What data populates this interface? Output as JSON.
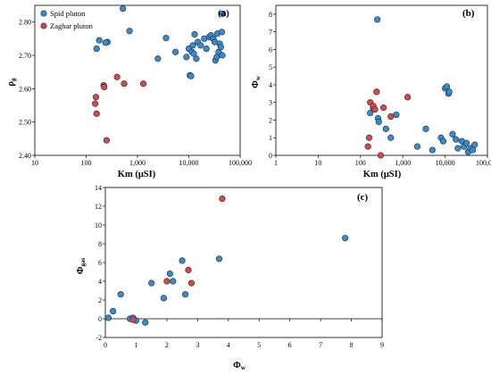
{
  "chart_data": [
    {
      "type": "scatter",
      "panel_label": "(a)",
      "xlabel": "Km (μSI)",
      "ylabel_main": "ρ",
      "ylabel_sub": "g",
      "xscale": "log",
      "xlim": [
        10,
        100000
      ],
      "ylim": [
        2.4,
        2.85
      ],
      "xticks": [
        10,
        100,
        1000,
        10000,
        100000
      ],
      "xtick_labels": [
        "10",
        "100",
        "1,000",
        "10,000",
        "100,000"
      ],
      "yticks": [
        2.4,
        2.5,
        2.6,
        2.7,
        2.8
      ],
      "ytick_labels": [
        "2.40",
        "2.50",
        "2.60",
        "2.70",
        "2.80"
      ],
      "legend": {
        "placement": "top-left",
        "entries": [
          "Spid pluton",
          "Zaghar pluton"
        ]
      },
      "series": [
        {
          "name": "Spid pluton",
          "color": "#3a8cc8",
          "points": [
            [
              520,
              2.84
            ],
            [
              180,
              2.745
            ],
            [
              160,
              2.72
            ],
            [
              260,
              2.74
            ],
            [
              240,
              2.738
            ],
            [
              700,
              2.773
            ],
            [
              2500,
              2.69
            ],
            [
              3600,
              2.752
            ],
            [
              5500,
              2.71
            ],
            [
              9000,
              2.695
            ],
            [
              10000,
              2.72
            ],
            [
              10500,
              2.64
            ],
            [
              11000,
              2.638
            ],
            [
              11500,
              2.71
            ],
            [
              12000,
              2.73
            ],
            [
              12500,
              2.705
            ],
            [
              13000,
              2.763
            ],
            [
              14000,
              2.69
            ],
            [
              15000,
              2.74
            ],
            [
              17000,
              2.73
            ],
            [
              20000,
              2.75
            ],
            [
              22000,
              2.72
            ],
            [
              25000,
              2.755
            ],
            [
              27000,
              2.76
            ],
            [
              30000,
              2.75
            ],
            [
              32000,
              2.74
            ],
            [
              33000,
              2.685
            ],
            [
              35000,
              2.695
            ],
            [
              36000,
              2.765
            ],
            [
              38000,
              2.71
            ],
            [
              40000,
              2.735
            ],
            [
              42000,
              2.725
            ],
            [
              44000,
              2.77
            ],
            [
              46000,
              2.825
            ],
            [
              45000,
              2.7
            ]
          ]
        },
        {
          "name": "Zaghar pluton",
          "color": "#d94848",
          "points": [
            [
              150,
              2.555
            ],
            [
              155,
              2.575
            ],
            [
              160,
              2.525
            ],
            [
              220,
              2.61
            ],
            [
              225,
              2.605
            ],
            [
              250,
              2.445
            ],
            [
              400,
              2.635
            ],
            [
              550,
              2.615
            ],
            [
              1300,
              2.615
            ]
          ]
        }
      ]
    },
    {
      "type": "scatter",
      "panel_label": "(b)",
      "xlabel": "Km (μSI)",
      "ylabel_main": "Φ",
      "ylabel_sub": "w",
      "xscale": "log",
      "xlim": [
        1,
        100000
      ],
      "ylim": [
        0,
        8.5
      ],
      "xticks": [
        1,
        10,
        100,
        1000,
        10000,
        100000
      ],
      "xtick_labels": [
        "1",
        "10",
        "100",
        "1,000",
        "10,000",
        "100,000"
      ],
      "yticks": [
        0,
        1,
        2,
        3,
        4,
        5,
        6,
        7,
        8
      ],
      "ytick_labels": [
        "0",
        "1",
        "2",
        "3",
        "4",
        "5",
        "6",
        "7",
        "8"
      ],
      "series": [
        {
          "name": "Spid pluton",
          "color": "#3a8cc8",
          "points": [
            [
              250,
              7.7
            ],
            [
              170,
              2.4
            ],
            [
              200,
              2.7
            ],
            [
              260,
              2.1
            ],
            [
              270,
              1.9
            ],
            [
              400,
              1.5
            ],
            [
              520,
              1.0
            ],
            [
              700,
              2.3
            ],
            [
              2200,
              0.5
            ],
            [
              3500,
              1.5
            ],
            [
              5000,
              0.3
            ],
            [
              8000,
              1.0
            ],
            [
              9000,
              0.8
            ],
            [
              10000,
              3.8
            ],
            [
              11000,
              3.9
            ],
            [
              12000,
              3.5
            ],
            [
              12500,
              3.6
            ],
            [
              15000,
              1.2
            ],
            [
              18000,
              0.9
            ],
            [
              20000,
              0.4
            ],
            [
              25000,
              0.8
            ],
            [
              28000,
              0.5
            ],
            [
              32000,
              0.7
            ],
            [
              35000,
              0.2
            ],
            [
              40000,
              0.4
            ],
            [
              45000,
              0.3
            ],
            [
              50000,
              0.6
            ]
          ]
        },
        {
          "name": "Zaghar pluton",
          "color": "#d94848",
          "points": [
            [
              150,
              0.5
            ],
            [
              160,
              1.0
            ],
            [
              170,
              3.0
            ],
            [
              200,
              2.8
            ],
            [
              220,
              2.6
            ],
            [
              240,
              3.6
            ],
            [
              300,
              0.0
            ],
            [
              350,
              2.7
            ],
            [
              520,
              2.2
            ],
            [
              1300,
              3.3
            ]
          ]
        }
      ]
    },
    {
      "type": "scatter",
      "panel_label": "(c)",
      "xlabel_main": "Φ",
      "xlabel_sub": "w",
      "ylabel_main": "Φ",
      "ylabel_sub": "gas",
      "xlim": [
        0,
        9
      ],
      "ylim": [
        -2,
        14
      ],
      "xticks": [
        0,
        1,
        2,
        3,
        4,
        5,
        6,
        7,
        8,
        9
      ],
      "xtick_labels": [
        "0",
        "1",
        "2",
        "3",
        "4",
        "5",
        "6",
        "7",
        "8",
        "9"
      ],
      "yticks": [
        -2,
        0,
        2,
        4,
        6,
        8,
        10,
        12,
        14
      ],
      "ytick_labels": [
        "-2",
        "0",
        "2",
        "4",
        "6",
        "8",
        "10",
        "12",
        "14"
      ],
      "series": [
        {
          "name": "Spid pluton",
          "color": "#3a8cc8",
          "points": [
            [
              0.1,
              0.1
            ],
            [
              0.25,
              0.8
            ],
            [
              0.5,
              2.6
            ],
            [
              0.8,
              0.0
            ],
            [
              0.9,
              0.1
            ],
            [
              1.0,
              -0.2
            ],
            [
              1.3,
              -0.4
            ],
            [
              1.5,
              3.8
            ],
            [
              1.9,
              2.2
            ],
            [
              2.1,
              4.8
            ],
            [
              2.2,
              4.0
            ],
            [
              2.5,
              6.2
            ],
            [
              2.6,
              2.6
            ],
            [
              3.7,
              6.4
            ],
            [
              7.8,
              8.6
            ]
          ]
        },
        {
          "name": "Zaghar pluton",
          "color": "#d94848",
          "points": [
            [
              0.9,
              -0.1
            ],
            [
              2.0,
              4.0
            ],
            [
              2.7,
              5.2
            ],
            [
              2.8,
              3.8
            ],
            [
              3.8,
              12.8
            ]
          ]
        }
      ]
    }
  ]
}
